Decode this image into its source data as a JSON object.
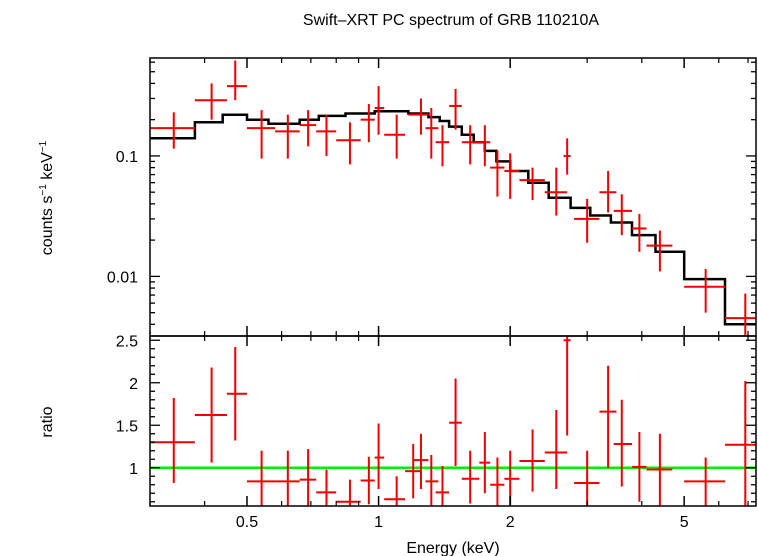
{
  "chart_data": [
    {
      "type": "scatter",
      "panel": "spectrum",
      "title": "Swift–XRT PC spectrum of GRB 110210A",
      "xlabel": "",
      "ylabel_main": "counts s",
      "ylabel_exp1": "−1",
      "ylabel_mid": " keV",
      "ylabel_exp2": "−1",
      "xscale": "log",
      "yscale": "log",
      "xlim": [
        0.3,
        7.3
      ],
      "ylim": [
        0.0032,
        0.65
      ],
      "yticks": [
        {
          "v": 0.1,
          "label": "0.1"
        },
        {
          "v": 0.01,
          "label": "0.01"
        }
      ],
      "color_data": "#ee0000",
      "color_model": "#000000",
      "series": [
        {
          "points": [
            {
              "x": 0.34,
              "xlo": 0.3,
              "xhi": 0.38,
              "y": 0.17,
              "ylo": 0.115,
              "yhi": 0.23
            },
            {
              "x": 0.415,
              "xlo": 0.38,
              "xhi": 0.45,
              "y": 0.29,
              "ylo": 0.2,
              "yhi": 0.4
            },
            {
              "x": 0.47,
              "xlo": 0.45,
              "xhi": 0.5,
              "y": 0.38,
              "ylo": 0.29,
              "yhi": 0.62
            },
            {
              "x": 0.54,
              "xlo": 0.5,
              "xhi": 0.58,
              "y": 0.17,
              "ylo": 0.095,
              "yhi": 0.24
            },
            {
              "x": 0.62,
              "xlo": 0.58,
              "xhi": 0.66,
              "y": 0.16,
              "ylo": 0.095,
              "yhi": 0.22
            },
            {
              "x": 0.69,
              "xlo": 0.66,
              "xhi": 0.72,
              "y": 0.18,
              "ylo": 0.12,
              "yhi": 0.24
            },
            {
              "x": 0.76,
              "xlo": 0.72,
              "xhi": 0.8,
              "y": 0.16,
              "ylo": 0.1,
              "yhi": 0.22
            },
            {
              "x": 0.86,
              "xlo": 0.8,
              "xhi": 0.91,
              "y": 0.135,
              "ylo": 0.085,
              "yhi": 0.19
            },
            {
              "x": 0.95,
              "xlo": 0.91,
              "xhi": 0.98,
              "y": 0.2,
              "ylo": 0.13,
              "yhi": 0.27
            },
            {
              "x": 1.0,
              "xlo": 0.98,
              "xhi": 1.03,
              "y": 0.25,
              "ylo": 0.15,
              "yhi": 0.38
            },
            {
              "x": 1.1,
              "xlo": 1.03,
              "xhi": 1.15,
              "y": 0.15,
              "ylo": 0.095,
              "yhi": 0.22
            },
            {
              "x": 1.25,
              "xlo": 1.17,
              "xhi": 1.3,
              "y": 0.22,
              "ylo": 0.15,
              "yhi": 0.3
            },
            {
              "x": 1.32,
              "xlo": 1.28,
              "xhi": 1.37,
              "y": 0.17,
              "ylo": 0.095,
              "yhi": 0.25
            },
            {
              "x": 1.4,
              "xlo": 1.35,
              "xhi": 1.45,
              "y": 0.13,
              "ylo": 0.082,
              "yhi": 0.18
            },
            {
              "x": 1.5,
              "xlo": 1.45,
              "xhi": 1.55,
              "y": 0.26,
              "ylo": 0.165,
              "yhi": 0.36
            },
            {
              "x": 1.62,
              "xlo": 1.55,
              "xhi": 1.7,
              "y": 0.13,
              "ylo": 0.085,
              "yhi": 0.18
            },
            {
              "x": 1.75,
              "xlo": 1.7,
              "xhi": 1.8,
              "y": 0.13,
              "ylo": 0.082,
              "yhi": 0.18
            },
            {
              "x": 1.87,
              "xlo": 1.8,
              "xhi": 1.94,
              "y": 0.08,
              "ylo": 0.046,
              "yhi": 0.11
            },
            {
              "x": 2.0,
              "xlo": 1.94,
              "xhi": 2.1,
              "y": 0.075,
              "ylo": 0.044,
              "yhi": 0.105
            },
            {
              "x": 2.25,
              "xlo": 2.1,
              "xhi": 2.4,
              "y": 0.063,
              "ylo": 0.043,
              "yhi": 0.08
            },
            {
              "x": 2.55,
              "xlo": 2.4,
              "xhi": 2.7,
              "y": 0.05,
              "ylo": 0.032,
              "yhi": 0.08
            },
            {
              "x": 2.7,
              "xlo": 2.65,
              "xhi": 2.75,
              "y": 0.1,
              "ylo": 0.07,
              "yhi": 0.14
            },
            {
              "x": 3.0,
              "xlo": 2.8,
              "xhi": 3.2,
              "y": 0.03,
              "ylo": 0.019,
              "yhi": 0.044
            },
            {
              "x": 3.35,
              "xlo": 3.2,
              "xhi": 3.5,
              "y": 0.05,
              "ylo": 0.034,
              "yhi": 0.075
            },
            {
              "x": 3.6,
              "xlo": 3.45,
              "xhi": 3.8,
              "y": 0.035,
              "ylo": 0.022,
              "yhi": 0.048
            },
            {
              "x": 3.95,
              "xlo": 3.8,
              "xhi": 4.1,
              "y": 0.025,
              "ylo": 0.016,
              "yhi": 0.033
            },
            {
              "x": 4.4,
              "xlo": 4.1,
              "xhi": 4.7,
              "y": 0.018,
              "ylo": 0.011,
              "yhi": 0.024
            },
            {
              "x": 5.6,
              "xlo": 5.0,
              "xhi": 6.2,
              "y": 0.0082,
              "ylo": 0.005,
              "yhi": 0.0115
            },
            {
              "x": 6.9,
              "xlo": 6.2,
              "xhi": 7.3,
              "y": 0.0045,
              "ylo": 0.0032,
              "yhi": 0.0072
            }
          ]
        }
      ],
      "model_steps": [
        {
          "xlo": 0.3,
          "xhi": 0.38,
          "y": 0.14
        },
        {
          "xlo": 0.38,
          "xhi": 0.44,
          "y": 0.19
        },
        {
          "xlo": 0.44,
          "xhi": 0.5,
          "y": 0.22
        },
        {
          "xlo": 0.5,
          "xhi": 0.56,
          "y": 0.2
        },
        {
          "xlo": 0.56,
          "xhi": 0.66,
          "y": 0.185
        },
        {
          "xlo": 0.66,
          "xhi": 0.73,
          "y": 0.2
        },
        {
          "xlo": 0.73,
          "xhi": 0.84,
          "y": 0.215
        },
        {
          "xlo": 0.84,
          "xhi": 0.98,
          "y": 0.225
        },
        {
          "xlo": 0.98,
          "xhi": 1.17,
          "y": 0.235
        },
        {
          "xlo": 1.17,
          "xhi": 1.3,
          "y": 0.225
        },
        {
          "xlo": 1.3,
          "xhi": 1.38,
          "y": 0.21
        },
        {
          "xlo": 1.38,
          "xhi": 1.45,
          "y": 0.195
        },
        {
          "xlo": 1.45,
          "xhi": 1.55,
          "y": 0.175
        },
        {
          "xlo": 1.55,
          "xhi": 1.65,
          "y": 0.15
        },
        {
          "xlo": 1.65,
          "xhi": 1.75,
          "y": 0.13
        },
        {
          "xlo": 1.75,
          "xhi": 1.86,
          "y": 0.11
        },
        {
          "xlo": 1.86,
          "xhi": 2.0,
          "y": 0.09
        },
        {
          "xlo": 2.0,
          "xhi": 2.2,
          "y": 0.075
        },
        {
          "xlo": 2.2,
          "xhi": 2.45,
          "y": 0.06
        },
        {
          "xlo": 2.45,
          "xhi": 2.75,
          "y": 0.045
        },
        {
          "xlo": 2.75,
          "xhi": 3.05,
          "y": 0.037
        },
        {
          "xlo": 3.05,
          "xhi": 3.4,
          "y": 0.032
        },
        {
          "xlo": 3.4,
          "xhi": 3.8,
          "y": 0.028
        },
        {
          "xlo": 3.8,
          "xhi": 4.3,
          "y": 0.022
        },
        {
          "xlo": 4.3,
          "xhi": 5.0,
          "y": 0.016
        },
        {
          "xlo": 5.0,
          "xhi": 6.2,
          "y": 0.0095
        },
        {
          "xlo": 6.2,
          "xhi": 7.3,
          "y": 0.004
        }
      ]
    },
    {
      "type": "scatter",
      "panel": "ratio",
      "xlabel": "Energy (keV)",
      "ylabel": "ratio",
      "xscale": "log",
      "yscale": "linear",
      "xlim": [
        0.3,
        7.3
      ],
      "ylim": [
        0.55,
        2.55
      ],
      "yticks": [
        {
          "v": 1,
          "label": "1"
        },
        {
          "v": 1.5,
          "label": "1.5"
        },
        {
          "v": 2,
          "label": "2"
        },
        {
          "v": 2.5,
          "label": "2.5"
        }
      ],
      "xticks": [
        {
          "v": 0.5,
          "label": "0.5"
        },
        {
          "v": 1,
          "label": "1"
        },
        {
          "v": 2,
          "label": "2"
        },
        {
          "v": 5,
          "label": "5"
        }
      ],
      "reference_line": {
        "y": 1,
        "color": "#00ee00"
      },
      "series": [
        {
          "points": [
            {
              "x": 0.34,
              "xlo": 0.3,
              "xhi": 0.38,
              "y": 1.3,
              "ylo": 0.82,
              "yhi": 1.82
            },
            {
              "x": 0.415,
              "xlo": 0.38,
              "xhi": 0.45,
              "y": 1.62,
              "ylo": 1.06,
              "yhi": 2.18
            },
            {
              "x": 0.47,
              "xlo": 0.45,
              "xhi": 0.5,
              "y": 1.87,
              "ylo": 1.32,
              "yhi": 2.42
            },
            {
              "x": 0.54,
              "xlo": 0.5,
              "xhi": 0.58,
              "y": 0.84,
              "ylo": 0.55,
              "yhi": 1.2
            },
            {
              "x": 0.62,
              "xlo": 0.58,
              "xhi": 0.66,
              "y": 0.84,
              "ylo": 0.55,
              "yhi": 1.2
            },
            {
              "x": 0.69,
              "xlo": 0.66,
              "xhi": 0.72,
              "y": 0.86,
              "ylo": 0.55,
              "yhi": 1.22
            },
            {
              "x": 0.76,
              "xlo": 0.72,
              "xhi": 0.8,
              "y": 0.71,
              "ylo": 0.55,
              "yhi": 0.98
            },
            {
              "x": 0.86,
              "xlo": 0.8,
              "xhi": 0.91,
              "y": 0.6,
              "ylo": 0.55,
              "yhi": 0.86
            },
            {
              "x": 0.95,
              "xlo": 0.91,
              "xhi": 0.98,
              "y": 0.85,
              "ylo": 0.57,
              "yhi": 1.13
            },
            {
              "x": 1.0,
              "xlo": 0.98,
              "xhi": 1.03,
              "y": 1.12,
              "ylo": 0.75,
              "yhi": 1.52
            },
            {
              "x": 1.1,
              "xlo": 1.03,
              "xhi": 1.15,
              "y": 0.63,
              "ylo": 0.55,
              "yhi": 0.9
            },
            {
              "x": 1.2,
              "xlo": 1.15,
              "xhi": 1.25,
              "y": 0.96,
              "ylo": 0.64,
              "yhi": 1.28
            },
            {
              "x": 1.25,
              "xlo": 1.2,
              "xhi": 1.3,
              "y": 1.09,
              "ylo": 0.75,
              "yhi": 1.4
            },
            {
              "x": 1.32,
              "xlo": 1.28,
              "xhi": 1.37,
              "y": 0.84,
              "ylo": 0.55,
              "yhi": 1.15
            },
            {
              "x": 1.4,
              "xlo": 1.35,
              "xhi": 1.45,
              "y": 0.71,
              "ylo": 0.55,
              "yhi": 1.02
            },
            {
              "x": 1.5,
              "xlo": 1.45,
              "xhi": 1.55,
              "y": 1.53,
              "ylo": 1.02,
              "yhi": 2.05
            },
            {
              "x": 1.62,
              "xlo": 1.55,
              "xhi": 1.7,
              "y": 0.87,
              "ylo": 0.58,
              "yhi": 1.2
            },
            {
              "x": 1.75,
              "xlo": 1.7,
              "xhi": 1.8,
              "y": 1.06,
              "ylo": 0.7,
              "yhi": 1.42
            },
            {
              "x": 1.87,
              "xlo": 1.8,
              "xhi": 1.94,
              "y": 0.8,
              "ylo": 0.55,
              "yhi": 1.12
            },
            {
              "x": 2.0,
              "xlo": 1.94,
              "xhi": 2.1,
              "y": 0.87,
              "ylo": 0.55,
              "yhi": 1.2
            },
            {
              "x": 2.25,
              "xlo": 2.1,
              "xhi": 2.4,
              "y": 1.08,
              "ylo": 0.72,
              "yhi": 1.45
            },
            {
              "x": 2.55,
              "xlo": 2.4,
              "xhi": 2.7,
              "y": 1.18,
              "ylo": 0.75,
              "yhi": 1.68
            },
            {
              "x": 2.7,
              "xlo": 2.65,
              "xhi": 2.75,
              "y": 2.5,
              "ylo": 1.38,
              "yhi": 2.55
            },
            {
              "x": 3.0,
              "xlo": 2.8,
              "xhi": 3.2,
              "y": 0.82,
              "ylo": 0.55,
              "yhi": 1.2
            },
            {
              "x": 3.35,
              "xlo": 3.2,
              "xhi": 3.5,
              "y": 1.66,
              "ylo": 1.0,
              "yhi": 2.2
            },
            {
              "x": 3.6,
              "xlo": 3.45,
              "xhi": 3.8,
              "y": 1.28,
              "ylo": 0.78,
              "yhi": 1.8
            },
            {
              "x": 3.95,
              "xlo": 3.8,
              "xhi": 4.1,
              "y": 1.01,
              "ylo": 0.6,
              "yhi": 1.42
            },
            {
              "x": 4.4,
              "xlo": 4.1,
              "xhi": 4.7,
              "y": 0.98,
              "ylo": 0.55,
              "yhi": 1.4
            },
            {
              "x": 5.6,
              "xlo": 5.0,
              "xhi": 6.2,
              "y": 0.84,
              "ylo": 0.55,
              "yhi": 1.12
            },
            {
              "x": 6.9,
              "xlo": 6.2,
              "xhi": 7.3,
              "y": 1.27,
              "ylo": 0.55,
              "yhi": 2.02
            }
          ]
        }
      ]
    }
  ]
}
